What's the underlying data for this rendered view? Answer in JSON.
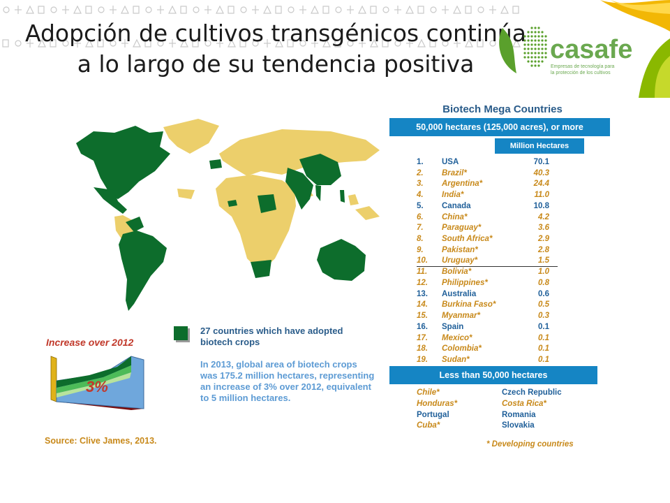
{
  "slide": {
    "title_line1": "Adopción de cultivos transgénicos continúa",
    "title_line2": "a lo largo de su tendencia positiva"
  },
  "logo": {
    "name": "casafe",
    "tagline_line1": "Empresas de tecnología para",
    "tagline_line2": "la protección de los cultivos",
    "brand_color": "#6aa84f"
  },
  "map": {
    "adopter_color": "#0d6d2c",
    "other_color": "#eccf6b",
    "icon": "world-map"
  },
  "table": {
    "title": "Biotech Mega Countries",
    "header_mega": "50,000 hectares (125,000 acres), or more",
    "unit_header": "Million Hectares",
    "rows": [
      {
        "rank": "1.",
        "country": "USA",
        "value": "70.1",
        "developing": false
      },
      {
        "rank": "2.",
        "country": "Brazil*",
        "value": "40.3",
        "developing": true
      },
      {
        "rank": "3.",
        "country": "Argentina*",
        "value": "24.4",
        "developing": true
      },
      {
        "rank": "4.",
        "country": "India*",
        "value": "11.0",
        "developing": true
      },
      {
        "rank": "5.",
        "country": "Canada",
        "value": "10.8",
        "developing": false
      },
      {
        "rank": "6.",
        "country": "China*",
        "value": "4.2",
        "developing": true
      },
      {
        "rank": "7.",
        "country": "Paraguay*",
        "value": "3.6",
        "developing": true
      },
      {
        "rank": "8.",
        "country": "South Africa*",
        "value": "2.9",
        "developing": true
      },
      {
        "rank": "9.",
        "country": "Pakistan*",
        "value": "2.8",
        "developing": true
      },
      {
        "rank": "10.",
        "country": "Uruguay*",
        "value": "1.5",
        "developing": true
      },
      {
        "rank": "11.",
        "country": "Bolivia*",
        "value": "1.0",
        "developing": true
      },
      {
        "rank": "12.",
        "country": "Philippines*",
        "value": "0.8",
        "developing": true
      },
      {
        "rank": "13.",
        "country": "Australia",
        "value": "0.6",
        "developing": false
      },
      {
        "rank": "14.",
        "country": "Burkina Faso*",
        "value": "0.5",
        "developing": true
      },
      {
        "rank": "15.",
        "country": "Myanmar*",
        "value": "0.3",
        "developing": true
      },
      {
        "rank": "16.",
        "country": "Spain",
        "value": "0.1",
        "developing": false
      },
      {
        "rank": "17.",
        "country": "Mexico*",
        "value": "0.1",
        "developing": true
      },
      {
        "rank": "18.",
        "country": "Colombia*",
        "value": "0.1",
        "developing": true
      },
      {
        "rank": "19.",
        "country": "Sudan*",
        "value": "0.1",
        "developing": true
      }
    ],
    "header_less": "Less than 50,000 hectares",
    "less_left": [
      {
        "country": "Chile*",
        "developing": true
      },
      {
        "country": "Honduras*",
        "developing": true
      },
      {
        "country": "Portugal",
        "developing": false
      },
      {
        "country": "Cuba*",
        "developing": true
      }
    ],
    "less_right": [
      {
        "country": "Czech Republic",
        "developing": false
      },
      {
        "country": "Costa Rica*",
        "developing": true
      },
      {
        "country": "Romania",
        "developing": false
      },
      {
        "country": "Slovakia",
        "developing": false
      }
    ],
    "developing_note": "* Developing countries",
    "developing_color": "#c8891a",
    "industrial_color": "#1f5f99"
  },
  "increase": {
    "title": "Increase over 2012",
    "percent_label": "3%",
    "increase_percent": 3
  },
  "legend": {
    "text": "27 countries which have adopted biotech crops",
    "paragraph": "In 2013, global area of biotech crops was 175.2 million hectares, representing an increase of 3% over 2012, equivalent to 5 million hectares."
  },
  "source": "Source: Clive James, 2013."
}
